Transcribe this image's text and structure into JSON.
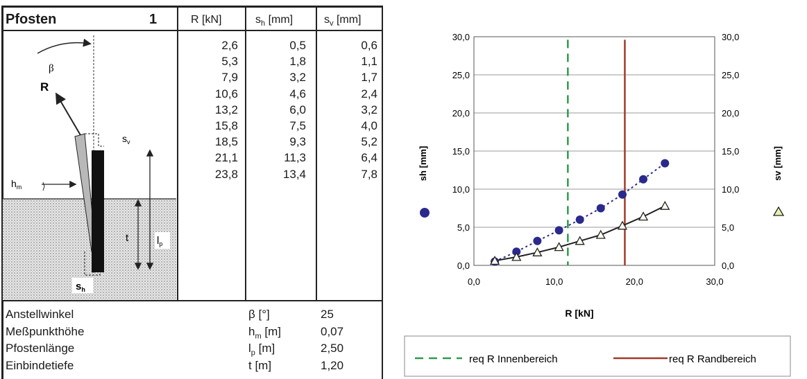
{
  "table": {
    "title": "Pfosten",
    "number": "1",
    "headers": {
      "r": "R [kN]",
      "sh_main": "s",
      "sh_sub": "h",
      "sh_unit": " [mm]",
      "sv_main": "s",
      "sv_sub": "v",
      "sv_unit": " [mm]"
    },
    "rows": [
      {
        "r": "2,6",
        "sh": "0,5",
        "sv": "0,6"
      },
      {
        "r": "5,3",
        "sh": "1,8",
        "sv": "1,1"
      },
      {
        "r": "7,9",
        "sh": "3,2",
        "sv": "1,7"
      },
      {
        "r": "10,6",
        "sh": "4,6",
        "sv": "2,4"
      },
      {
        "r": "13,2",
        "sh": "6,0",
        "sv": "3,2"
      },
      {
        "r": "15,8",
        "sh": "7,5",
        "sv": "4,0"
      },
      {
        "r": "18,5",
        "sh": "9,3",
        "sv": "5,2"
      },
      {
        "r": "21,1",
        "sh": "11,3",
        "sv": "6,4"
      },
      {
        "r": "23,8",
        "sh": "13,4",
        "sv": "7,8"
      }
    ]
  },
  "diagram": {
    "beta": "β",
    "r": "R",
    "sv_main": "s",
    "sv_sub": "v",
    "hm_main": "h",
    "hm_sub": "m",
    "t": "t",
    "lp_main": "l",
    "lp_sub": "p",
    "sh_main": "s",
    "sh_sub": "h"
  },
  "params": [
    {
      "label": "Anstellwinkel",
      "sym_main": "β",
      "sym_sub": "",
      "unit": " [°]",
      "value": "25"
    },
    {
      "label": "Meßpunkthöhe",
      "sym_main": "h",
      "sym_sub": "m",
      "unit": " [m]",
      "value": "0,07"
    },
    {
      "label": "Pfostenlänge",
      "sym_main": "l",
      "sym_sub": "p",
      "unit": " [m]",
      "value": "2,50"
    },
    {
      "label": "Einbindetiefe",
      "sym_main": "t",
      "sym_sub": "",
      "unit": " [m]",
      "value": "1,20"
    }
  ],
  "chart_data": {
    "type": "scatter",
    "xlabel": "R [kN]",
    "ylabel_left": "sh [mm]",
    "ylabel_right": "sv [mm]",
    "xlim": [
      0,
      30
    ],
    "ylim": [
      0,
      30
    ],
    "xticks": [
      "0,0",
      "10,0",
      "20,0",
      "30,0"
    ],
    "yticks": [
      "0,0",
      "5,0",
      "10,0",
      "15,0",
      "20,0",
      "25,0",
      "30,0"
    ],
    "grid": "horizontal",
    "series": [
      {
        "axis": "left",
        "marker": "circle",
        "color": "#2a2a8c",
        "linestyle": "dotted",
        "x": [
          2.6,
          5.3,
          7.9,
          10.6,
          13.2,
          15.8,
          18.5,
          21.1,
          23.8
        ],
        "y": [
          0.5,
          1.8,
          3.2,
          4.6,
          6.0,
          7.5,
          9.3,
          11.3,
          13.4
        ]
      },
      {
        "axis": "right",
        "marker": "triangle",
        "color": "#222222",
        "linestyle": "solid",
        "x": [
          2.6,
          5.3,
          7.9,
          10.6,
          13.2,
          15.8,
          18.5,
          21.1,
          23.8
        ],
        "y": [
          0.6,
          1.1,
          1.7,
          2.4,
          3.2,
          4.0,
          5.2,
          6.4,
          7.8
        ]
      }
    ],
    "reference_lines": [
      {
        "name": "req R Innenbereich",
        "x": 11.7,
        "color": "#2e9a4a",
        "style": "dashed"
      },
      {
        "name": "req R Randbereich",
        "x": 18.8,
        "color": "#a03a2a",
        "style": "solid"
      }
    ],
    "legend": {
      "position": "bottom"
    }
  }
}
